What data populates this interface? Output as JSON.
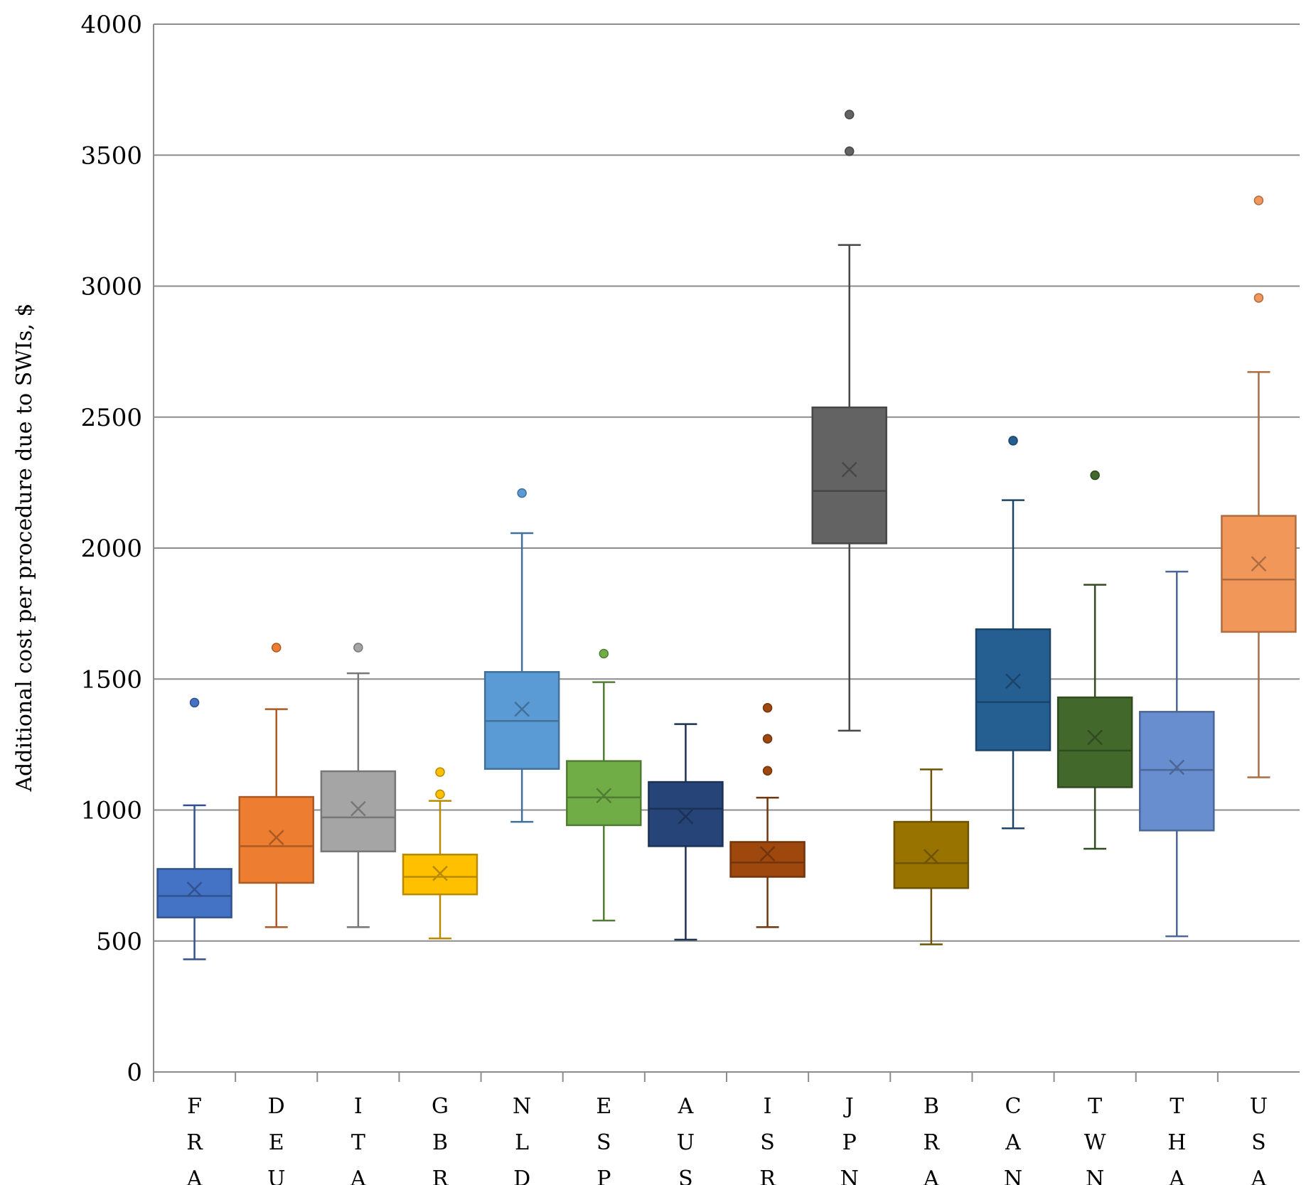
{
  "chart_data": {
    "type": "boxplot",
    "title": "",
    "xlabel": "",
    "ylabel": "Additional cost per procedure due to SWIs, $",
    "ylim": [
      0,
      4000
    ],
    "yticks": [
      0,
      500,
      1000,
      1500,
      2000,
      2500,
      3000,
      3500,
      4000
    ],
    "ytick_labels": [
      "0",
      "500",
      "1000",
      "1500",
      "2000",
      "2500",
      "3000",
      "3500",
      "4000"
    ],
    "grid": true,
    "categories": [
      "FRA",
      "DEU",
      "ITA",
      "GBR",
      "NLD",
      "ESP",
      "AUS",
      "ISR",
      "JPN",
      "BRA",
      "CAN",
      "TWN",
      "THA",
      "USA"
    ],
    "series": [
      {
        "name": "FRA",
        "color": "#4472C4",
        "whisker_low": 430,
        "q1": 590,
        "median": 672,
        "q3": 775,
        "whisker_high": 1018,
        "mean": 697,
        "outliers": [
          1410
        ]
      },
      {
        "name": "DEU",
        "color": "#ED7D31",
        "whisker_low": 553,
        "q1": 722,
        "median": 862,
        "q3": 1050,
        "whisker_high": 1385,
        "mean": 895,
        "outliers": [
          1620
        ]
      },
      {
        "name": "ITA",
        "color": "#A5A5A5",
        "whisker_low": 553,
        "q1": 842,
        "median": 972,
        "q3": 1148,
        "whisker_high": 1522,
        "mean": 1005,
        "outliers": [
          1620
        ]
      },
      {
        "name": "GBR",
        "color": "#FFC000",
        "whisker_low": 510,
        "q1": 678,
        "median": 745,
        "q3": 830,
        "whisker_high": 1035,
        "mean": 758,
        "outliers": [
          1060,
          1145
        ]
      },
      {
        "name": "NLD",
        "color": "#5B9BD5",
        "whisker_low": 955,
        "q1": 1157,
        "median": 1340,
        "q3": 1527,
        "whisker_high": 2057,
        "mean": 1385,
        "outliers": [
          2210
        ]
      },
      {
        "name": "ESP",
        "color": "#70AD47",
        "whisker_low": 578,
        "q1": 942,
        "median": 1048,
        "q3": 1187,
        "whisker_high": 1488,
        "mean": 1055,
        "outliers": [
          1597
        ]
      },
      {
        "name": "AUS",
        "color": "#264478",
        "whisker_low": 505,
        "q1": 862,
        "median": 1005,
        "q3": 1107,
        "whisker_high": 1328,
        "mean": 975,
        "outliers": []
      },
      {
        "name": "ISR",
        "color": "#9E480E",
        "whisker_low": 553,
        "q1": 745,
        "median": 800,
        "q3": 878,
        "whisker_high": 1047,
        "mean": 833,
        "outliers": [
          1150,
          1272,
          1390
        ]
      },
      {
        "name": "JPN",
        "color": "#636363",
        "whisker_low": 1303,
        "q1": 2018,
        "median": 2218,
        "q3": 2537,
        "whisker_high": 3157,
        "mean": 2300,
        "outliers": [
          3515,
          3655
        ]
      },
      {
        "name": "BRA",
        "color": "#997300",
        "whisker_low": 487,
        "q1": 702,
        "median": 797,
        "q3": 955,
        "whisker_high": 1155,
        "mean": 822,
        "outliers": []
      },
      {
        "name": "CAN",
        "color": "#255E91",
        "whisker_low": 930,
        "q1": 1228,
        "median": 1412,
        "q3": 1690,
        "whisker_high": 2183,
        "mean": 1492,
        "outliers": [
          2410
        ]
      },
      {
        "name": "TWN",
        "color": "#43682B",
        "whisker_low": 852,
        "q1": 1087,
        "median": 1227,
        "q3": 1430,
        "whisker_high": 1860,
        "mean": 1277,
        "outliers": [
          2278
        ]
      },
      {
        "name": "THA",
        "color": "#698ED0",
        "whisker_low": 518,
        "q1": 922,
        "median": 1153,
        "q3": 1375,
        "whisker_high": 1910,
        "mean": 1163,
        "outliers": []
      },
      {
        "name": "USA",
        "color": "#F1975A",
        "whisker_low": 1125,
        "q1": 1680,
        "median": 1880,
        "q3": 2123,
        "whisker_high": 2672,
        "mean": 1940,
        "outliers": [
          2955,
          3327
        ]
      }
    ]
  }
}
